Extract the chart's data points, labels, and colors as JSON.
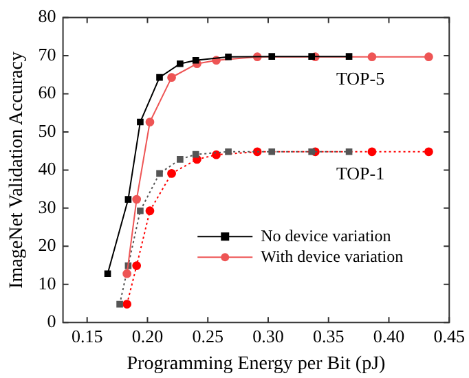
{
  "chart_data": {
    "type": "line",
    "xlabel": "Programming Energy per Bit (pJ)",
    "ylabel": "ImageNet Validation Accuracy",
    "xlim": [
      0.13,
      0.45
    ],
    "xticks": [
      0.15,
      {
        "value": 0.2,
        "label": "0.20"
      },
      0.25,
      {
        "value": 0.3,
        "label": "0.30"
      },
      0.35,
      {
        "value": 0.4,
        "label": "0.40"
      },
      0.45
    ],
    "ylim": [
      0,
      80
    ],
    "yticks": [
      0,
      10,
      20,
      30,
      40,
      50,
      60,
      70,
      80
    ],
    "grid": false,
    "legend": "bottom right",
    "annotations": [
      "TOP-5",
      "TOP-1"
    ],
    "series": [
      {
        "name": "No device variation",
        "color": "#000000",
        "marker": "square",
        "line_style": "solid",
        "x": [
          0.167,
          0.184,
          0.194,
          0.21,
          0.227,
          0.24,
          0.267,
          0.303,
          0.336,
          0.367
        ],
        "values": [
          12.8,
          32.3,
          52.6,
          64.3,
          67.9,
          68.8,
          69.7,
          69.8,
          69.8,
          69.8
        ]
      },
      {
        "name": "With device variation",
        "color": "#ee5555",
        "marker": "circle",
        "line_style": "solid",
        "x": [
          0.183,
          0.191,
          0.202,
          0.22,
          0.241,
          0.257,
          0.291,
          0.339,
          0.386,
          0.433
        ],
        "values": [
          12.8,
          32.3,
          52.6,
          64.3,
          67.9,
          68.8,
          69.7,
          69.7,
          69.7,
          69.7
        ]
      },
      {
        "color": "#555555",
        "marker": "square",
        "line_style": "dotted",
        "x": [
          0.177,
          0.184,
          0.194,
          0.21,
          0.227,
          0.24,
          0.267,
          0.303,
          0.336,
          0.367
        ],
        "values": [
          4.8,
          14.9,
          29.3,
          39.1,
          42.8,
          44.1,
          44.8,
          44.8,
          44.8,
          44.8
        ]
      },
      {
        "color": "#ff0000",
        "marker": "circle",
        "line_style": "dotted",
        "x": [
          0.183,
          0.191,
          0.202,
          0.22,
          0.241,
          0.257,
          0.291,
          0.339,
          0.386,
          0.433
        ],
        "values": [
          4.8,
          14.9,
          29.3,
          39.1,
          42.8,
          44.0,
          44.8,
          44.8,
          44.8,
          44.8
        ]
      }
    ]
  }
}
